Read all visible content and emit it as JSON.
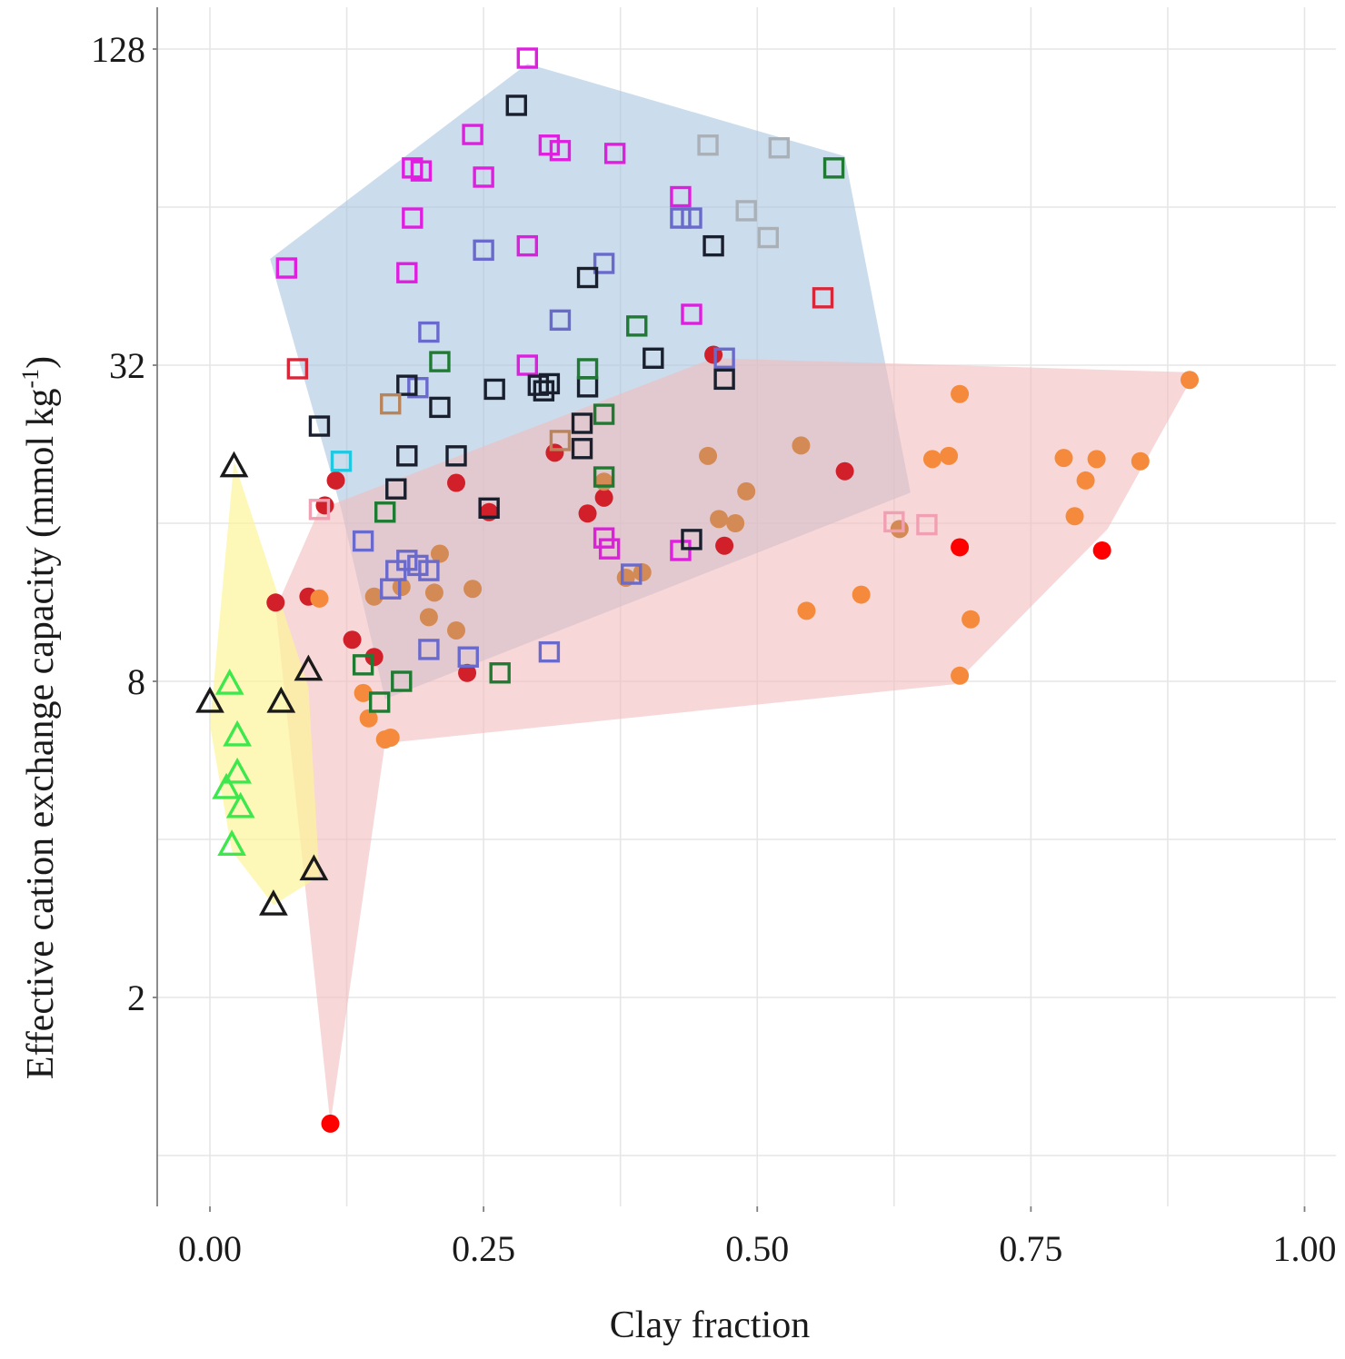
{
  "chart_data": {
    "type": "scatter",
    "title": "",
    "xlabel": "Clay fraction",
    "ylabel": "Effective cation exchange capacity (mmol kg",
    "ylabel_superscript": "-1",
    "ylabel_close": ")",
    "xlim": [
      -0.04,
      1.03
    ],
    "ylim_log2": [
      0.2,
      7.25
    ],
    "y_scale": "log2",
    "grid": true,
    "legend": "none",
    "x_ticks": [
      {
        "value": 0.0,
        "label": "0.00"
      },
      {
        "value": 0.25,
        "label": "0.25"
      },
      {
        "value": 0.5,
        "label": "0.50"
      },
      {
        "value": 0.75,
        "label": "0.75"
      },
      {
        "value": 1.0,
        "label": "1.00"
      }
    ],
    "x_minor_grid": [
      0.125,
      0.375,
      0.625,
      0.875
    ],
    "y_ticks": [
      {
        "value": 2,
        "label": "2"
      },
      {
        "value": 8,
        "label": "8"
      },
      {
        "value": 32,
        "label": "32"
      },
      {
        "value": 128,
        "label": "128"
      }
    ],
    "y_minor_grid": [
      1,
      4,
      16,
      64
    ],
    "hulls": [
      {
        "name": "square-group-hull",
        "color": "#a9c4e0",
        "opacity": 0.6,
        "points": [
          [
            0.055,
            51
          ],
          [
            0.29,
            120
          ],
          [
            0.58,
            80
          ],
          [
            0.64,
            18.3
          ],
          [
            0.16,
            7.4
          ],
          [
            0.12,
            17
          ]
        ]
      },
      {
        "name": "circle-group-hull",
        "color": "#f2bcbc",
        "opacity": 0.6,
        "points": [
          [
            0.11,
            1.15
          ],
          [
            0.16,
            6.1
          ],
          [
            0.68,
            7.9
          ],
          [
            0.82,
            15.6
          ],
          [
            0.9,
            31
          ],
          [
            0.46,
            33
          ],
          [
            0.1,
            17
          ],
          [
            0.06,
            11
          ]
        ]
      },
      {
        "name": "triangle-group-hull",
        "color": "#fdf59a",
        "opacity": 0.7,
        "points": [
          [
            0.022,
            21
          ],
          [
            0.09,
            7.8
          ],
          [
            0.1,
            3.4
          ],
          [
            0.058,
            3.0
          ],
          [
            0.02,
            3.8
          ],
          [
            0.0,
            6.6
          ]
        ]
      }
    ],
    "series": [
      {
        "name": "magenta-squares",
        "shape": "square",
        "color": "#e01ee0",
        "points": [
          [
            0.29,
            123
          ],
          [
            0.24,
            88
          ],
          [
            0.31,
            84
          ],
          [
            0.32,
            82
          ],
          [
            0.37,
            81
          ],
          [
            0.185,
            76
          ],
          [
            0.193,
            75
          ],
          [
            0.25,
            73
          ],
          [
            0.43,
            67
          ],
          [
            0.185,
            61
          ],
          [
            0.29,
            54
          ],
          [
            0.07,
            49
          ],
          [
            0.18,
            48
          ],
          [
            0.44,
            40
          ],
          [
            0.29,
            32
          ],
          [
            0.36,
            15
          ],
          [
            0.365,
            14.3
          ],
          [
            0.43,
            14.2
          ]
        ]
      },
      {
        "name": "slate-blue-squares",
        "shape": "square",
        "color": "#6a6acd",
        "points": [
          [
            0.43,
            61
          ],
          [
            0.44,
            61
          ],
          [
            0.25,
            53
          ],
          [
            0.36,
            50
          ],
          [
            0.2,
            37
          ],
          [
            0.32,
            39
          ],
          [
            0.47,
            33
          ],
          [
            0.19,
            29
          ],
          [
            0.14,
            14.8
          ],
          [
            0.18,
            13.6
          ],
          [
            0.19,
            13.3
          ],
          [
            0.17,
            13.0
          ],
          [
            0.165,
            12.0
          ],
          [
            0.2,
            13.0
          ],
          [
            0.385,
            12.8
          ],
          [
            0.2,
            9.2
          ],
          [
            0.236,
            8.9
          ],
          [
            0.31,
            9.1
          ]
        ]
      },
      {
        "name": "black-squares",
        "shape": "square",
        "color": "#1a1f2e",
        "points": [
          [
            0.28,
            100
          ],
          [
            0.46,
            54
          ],
          [
            0.345,
            47
          ],
          [
            0.31,
            29.5
          ],
          [
            0.405,
            33
          ],
          [
            0.3,
            29.3
          ],
          [
            0.305,
            28.6
          ],
          [
            0.18,
            29.3
          ],
          [
            0.26,
            28.8
          ],
          [
            0.345,
            29.1
          ],
          [
            0.47,
            30.1
          ],
          [
            0.34,
            24.8
          ],
          [
            0.21,
            26.6
          ],
          [
            0.1,
            24.5
          ],
          [
            0.34,
            22.2
          ],
          [
            0.18,
            21.5
          ],
          [
            0.225,
            21.5
          ],
          [
            0.17,
            18.6
          ],
          [
            0.255,
            17.1
          ],
          [
            0.44,
            14.9
          ]
        ]
      },
      {
        "name": "green-squares",
        "shape": "square",
        "color": "#1f7a32",
        "points": [
          [
            0.57,
            76
          ],
          [
            0.39,
            38
          ],
          [
            0.21,
            32.5
          ],
          [
            0.345,
            31.5
          ],
          [
            0.36,
            25.8
          ],
          [
            0.36,
            19.6
          ],
          [
            0.16,
            16.8
          ],
          [
            0.14,
            8.6
          ],
          [
            0.175,
            8.0
          ],
          [
            0.265,
            8.3
          ],
          [
            0.155,
            7.3
          ]
        ]
      },
      {
        "name": "light-gray-squares",
        "shape": "square",
        "color": "#a9b0b8",
        "points": [
          [
            0.455,
            84
          ],
          [
            0.52,
            83
          ],
          [
            0.49,
            63
          ],
          [
            0.51,
            56
          ]
        ]
      },
      {
        "name": "red-outline-squares",
        "shape": "square",
        "color": "#d9273a",
        "points": [
          [
            0.08,
            31.5
          ],
          [
            0.56,
            43
          ]
        ]
      },
      {
        "name": "tan-squares",
        "shape": "square",
        "color": "#b9845a",
        "points": [
          [
            0.165,
            27
          ],
          [
            0.32,
            23
          ]
        ]
      },
      {
        "name": "cyan-squares",
        "shape": "square",
        "color": "#22c8e0",
        "points": [
          [
            0.12,
            21
          ]
        ]
      },
      {
        "name": "pink-squares",
        "shape": "square",
        "color": "#f1a0b4",
        "points": [
          [
            0.1,
            17
          ],
          [
            0.625,
            16.1
          ],
          [
            0.655,
            15.9
          ]
        ]
      },
      {
        "name": "dark-red-circles",
        "shape": "circle",
        "color": "#d2202a",
        "points": [
          [
            0.46,
            33.5
          ],
          [
            0.315,
            21.8
          ],
          [
            0.58,
            20.1
          ],
          [
            0.115,
            19.3
          ],
          [
            0.225,
            19.1
          ],
          [
            0.36,
            17.9
          ],
          [
            0.105,
            17.3
          ],
          [
            0.255,
            16.8
          ],
          [
            0.345,
            16.7
          ],
          [
            0.47,
            14.5
          ],
          [
            0.09,
            11.6
          ],
          [
            0.13,
            9.6
          ],
          [
            0.15,
            8.9
          ],
          [
            0.235,
            8.3
          ],
          [
            0.06,
            11.3
          ]
        ]
      },
      {
        "name": "bright-red-circles",
        "shape": "circle",
        "color": "#ff0000",
        "points": [
          [
            0.685,
            14.4
          ],
          [
            0.815,
            14.2
          ],
          [
            0.11,
            1.15
          ]
        ]
      },
      {
        "name": "tan-circles",
        "shape": "circle",
        "color": "#d48a55",
        "points": [
          [
            0.455,
            21.5
          ],
          [
            0.54,
            22.5
          ],
          [
            0.36,
            19.2
          ],
          [
            0.49,
            18.4
          ],
          [
            0.21,
            14.0
          ],
          [
            0.465,
            16.3
          ],
          [
            0.48,
            16.0
          ],
          [
            0.63,
            15.6
          ],
          [
            0.24,
            12.0
          ],
          [
            0.205,
            11.8
          ],
          [
            0.175,
            12.1
          ],
          [
            0.15,
            11.6
          ],
          [
            0.38,
            12.6
          ],
          [
            0.395,
            12.9
          ],
          [
            0.2,
            10.6
          ],
          [
            0.225,
            10.0
          ]
        ]
      },
      {
        "name": "orange-circles",
        "shape": "circle",
        "color": "#f58a3c",
        "points": [
          [
            0.895,
            30.0
          ],
          [
            0.685,
            28.2
          ],
          [
            0.66,
            21.2
          ],
          [
            0.675,
            21.5
          ],
          [
            0.78,
            21.3
          ],
          [
            0.81,
            21.2
          ],
          [
            0.85,
            21.0
          ],
          [
            0.8,
            19.3
          ],
          [
            0.79,
            16.5
          ],
          [
            0.1,
            11.5
          ],
          [
            0.545,
            10.9
          ],
          [
            0.595,
            11.7
          ],
          [
            0.695,
            10.5
          ],
          [
            0.685,
            8.2
          ],
          [
            0.14,
            7.6
          ],
          [
            0.145,
            6.8
          ],
          [
            0.16,
            6.2
          ],
          [
            0.165,
            6.25
          ]
        ]
      },
      {
        "name": "black-triangles",
        "shape": "triangle",
        "color": "#1a1a1a",
        "points": [
          [
            0.022,
            20.5
          ],
          [
            0.09,
            8.4
          ],
          [
            0.0,
            7.3
          ],
          [
            0.065,
            7.3
          ],
          [
            0.095,
            3.5
          ],
          [
            0.058,
            3.0
          ]
        ]
      },
      {
        "name": "green-triangles",
        "shape": "triangle",
        "color": "#3de84d",
        "points": [
          [
            0.018,
            7.9
          ],
          [
            0.025,
            6.3
          ],
          [
            0.025,
            5.35
          ],
          [
            0.015,
            5.0
          ],
          [
            0.028,
            4.6
          ],
          [
            0.02,
            3.9
          ]
        ]
      }
    ]
  }
}
